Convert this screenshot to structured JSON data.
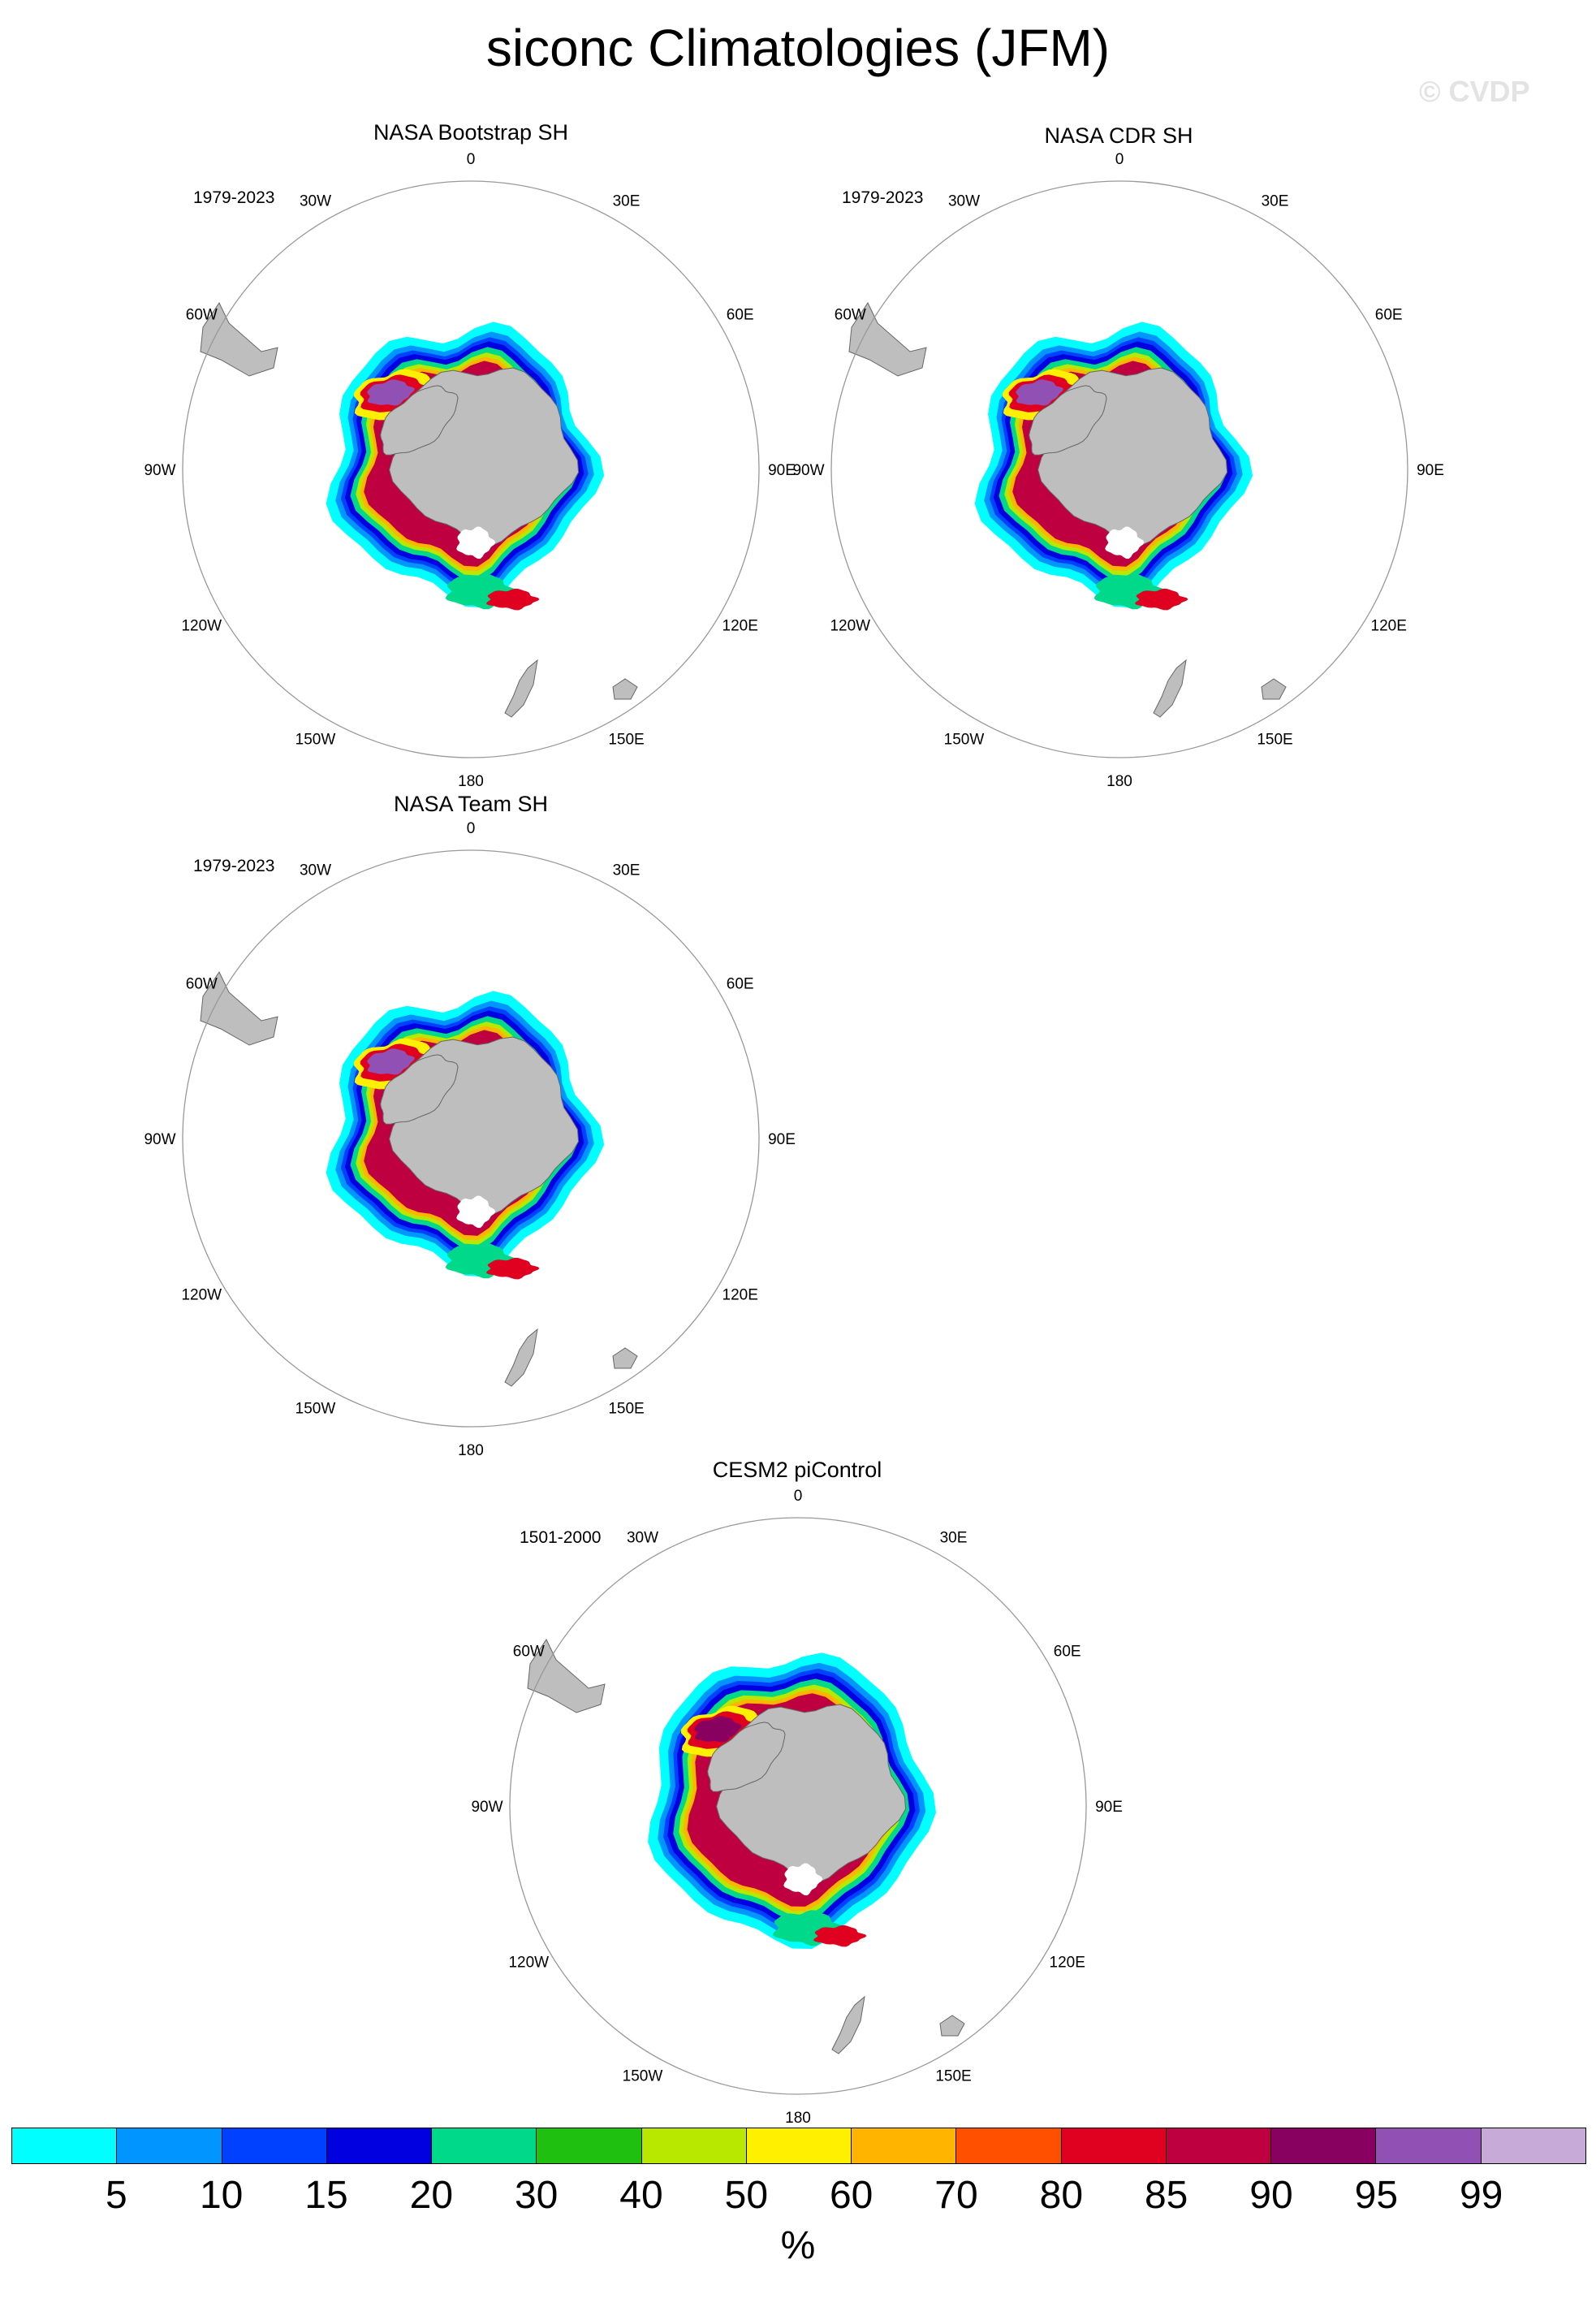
{
  "title": "siconc Climatologies (JFM)",
  "watermark": "© CVDP",
  "panels": [
    {
      "title": "NASA Bootstrap SH",
      "period": "1979-2023"
    },
    {
      "title": "NASA CDR SH",
      "period": "1979-2023"
    },
    {
      "title": "NASA Team SH",
      "period": "1979-2023"
    },
    {
      "title": "CESM2 piControl",
      "period": "1501-2000"
    }
  ],
  "longitude_labels": [
    "0",
    "30E",
    "60E",
    "90E",
    "120E",
    "150E",
    "180",
    "150W",
    "120W",
    "90W",
    "60W",
    "30W"
  ],
  "colors": {
    "land": "#bebebe",
    "map_border": "#999999",
    "levels": [
      "#00ffff",
      "#0095ff",
      "#0040ff",
      "#0000e0",
      "#00d88a",
      "#20c010",
      "#b8e800",
      "#fff000",
      "#ffb400",
      "#ff5000",
      "#e00020",
      "#be0040",
      "#880060",
      "#9050b4",
      "#c8aad8"
    ]
  },
  "colorbar": {
    "labels": [
      "5",
      "10",
      "15",
      "20",
      "30",
      "40",
      "50",
      "60",
      "70",
      "80",
      "85",
      "90",
      "95",
      "99"
    ],
    "units": "%"
  }
}
